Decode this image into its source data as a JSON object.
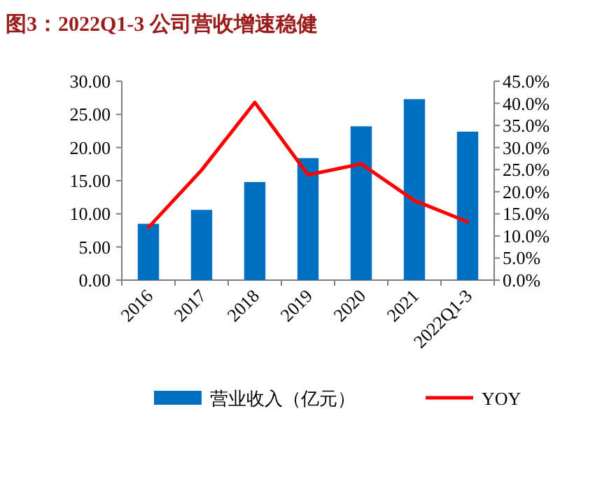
{
  "chart_data": {
    "type": "bar",
    "title": "图3：2022Q1-3 公司营收增速稳健",
    "categories": [
      "2016",
      "2017",
      "2018",
      "2019",
      "2020",
      "2021",
      "2022Q1-3"
    ],
    "series": [
      {
        "name": "营业收入（亿元）",
        "color": "#0070c0",
        "values": [
          8.5,
          10.6,
          14.8,
          18.4,
          23.2,
          27.3,
          22.4
        ]
      },
      {
        "name": "YOY",
        "type": "line",
        "axis": "y2",
        "color": "#ff0000",
        "values": [
          11.9,
          24.9,
          40.2,
          23.8,
          26.3,
          18.0,
          13.2
        ]
      }
    ],
    "ylim": [
      0,
      30
    ],
    "yticks": [
      {
        "value": 0,
        "label": "0.00"
      },
      {
        "value": 5,
        "label": "5.00"
      },
      {
        "value": 10,
        "label": "10.00"
      },
      {
        "value": 15,
        "label": "15.00"
      },
      {
        "value": 20,
        "label": "20.00"
      },
      {
        "value": 25,
        "label": "25.00"
      },
      {
        "value": 30,
        "label": "30.00"
      }
    ],
    "y2lim": [
      0,
      45
    ],
    "y2ticks": [
      {
        "value": 0,
        "label": "0.0%"
      },
      {
        "value": 5,
        "label": "5.0%"
      },
      {
        "value": 10,
        "label": "10.0%"
      },
      {
        "value": 15,
        "label": "15.0%"
      },
      {
        "value": 20,
        "label": "20.0%"
      },
      {
        "value": 25,
        "label": "25.0%"
      },
      {
        "value": 30,
        "label": "30.0%"
      },
      {
        "value": 35,
        "label": "35.0%"
      },
      {
        "value": 40,
        "label": "40.0%"
      },
      {
        "value": 45,
        "label": "45.0%"
      }
    ],
    "legend": "bottom"
  }
}
